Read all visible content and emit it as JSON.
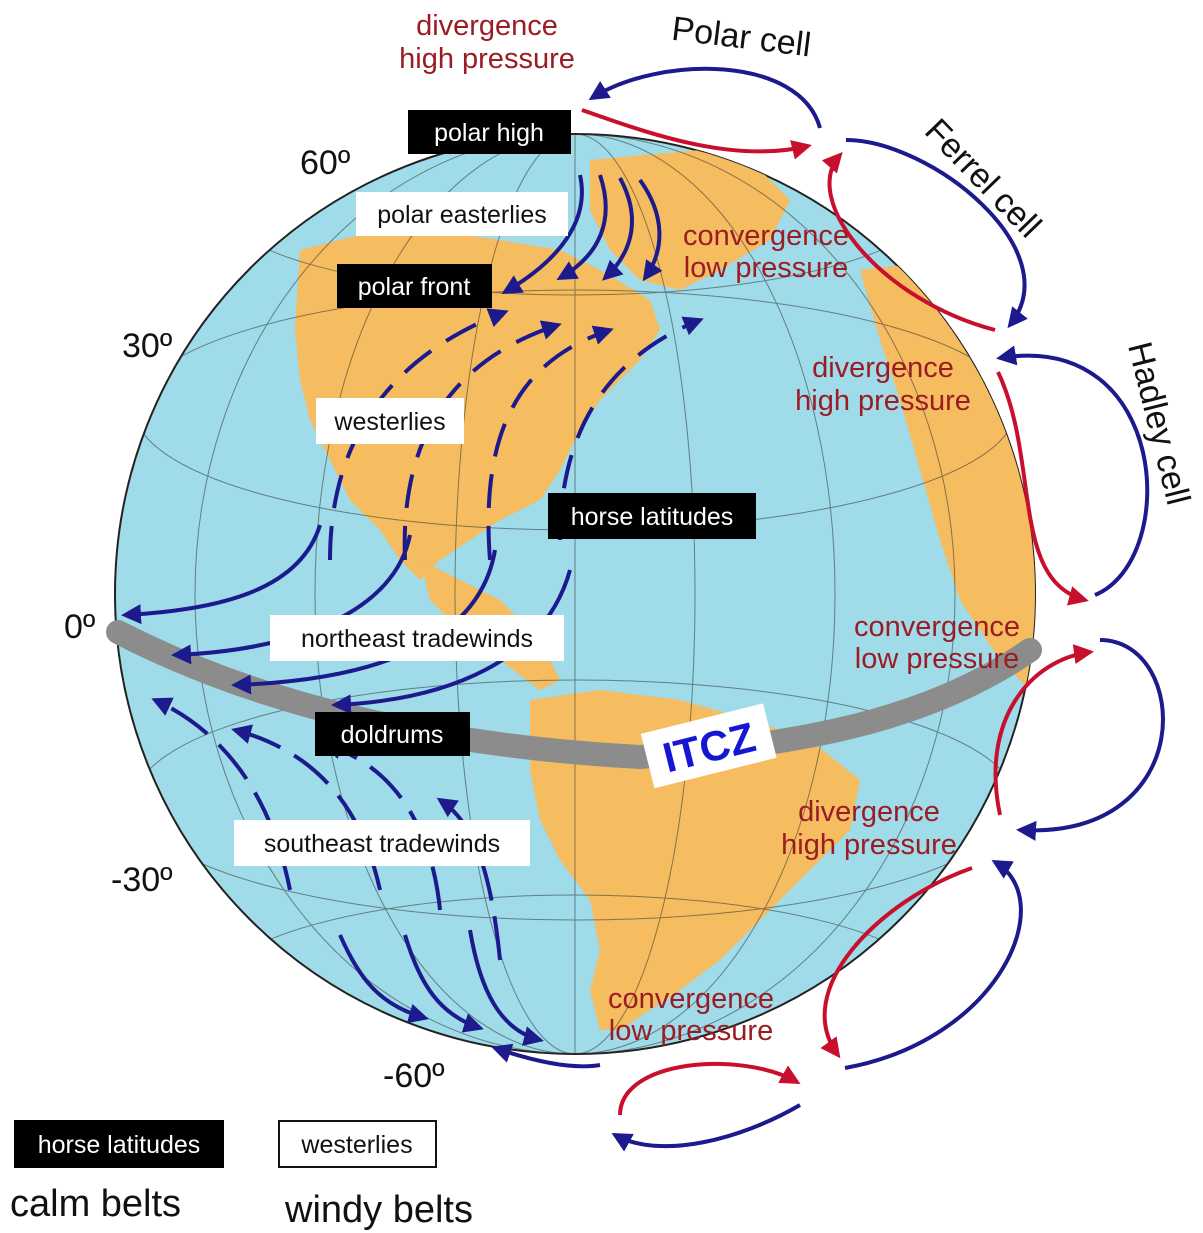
{
  "globe": {
    "calm_labels": {
      "polar_high": "polar high",
      "polar_front": "polar front",
      "horse_latitudes": "horse latitudes",
      "doldrums": "doldrums"
    },
    "windy_labels": {
      "polar_easterlies": "polar easterlies",
      "westerlies": "westerlies",
      "northeast_tradewinds": "northeast tradewinds",
      "southeast_tradewinds": "southeast tradewinds"
    },
    "latitudes": {
      "lat60": "60º",
      "lat30": "30º",
      "lat0": "0º",
      "latm30": "-30º",
      "latm60": "-60º"
    },
    "itcz": "ITCZ"
  },
  "pressure_labels": {
    "p1": [
      "divergence",
      "high pressure"
    ],
    "p2": [
      "convergence",
      "low pressure"
    ],
    "p3": [
      "divergence",
      "high pressure"
    ],
    "p4": [
      "convergence",
      "low pressure"
    ],
    "p5": [
      "divergence",
      "high pressure"
    ],
    "p6": [
      "convergence",
      "low pressure"
    ]
  },
  "cells": {
    "polar": "Polar cell",
    "ferrel": "Ferrel cell",
    "hadley": "Hadley cell"
  },
  "legend": {
    "calm_sample": "horse latitudes",
    "windy_sample": "westerlies",
    "calm_caption": "calm belts",
    "windy_caption": "windy belts"
  },
  "colors": {
    "ocean": "#9fdbe8",
    "land": "#f5bd5f",
    "wind": "#1c1a8c",
    "rising": "#c8102e",
    "pressure_text": "#9b1c24",
    "itcz_band": "#8c8c8c"
  }
}
